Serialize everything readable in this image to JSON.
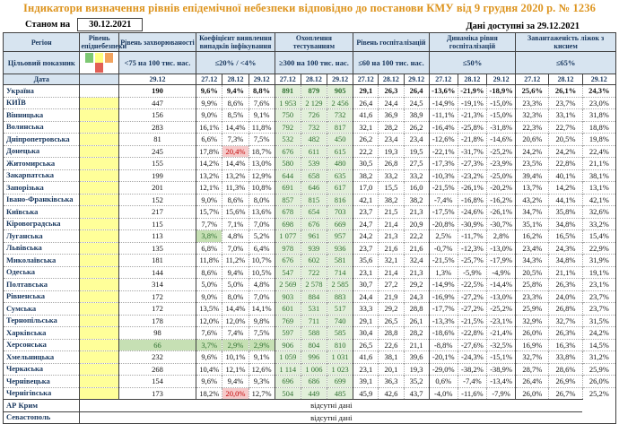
{
  "title": "Індикатори визначення рівнів епідемічної небезпеки відповідно до постанови КМУ від 9 грудня 2020 р. № 1236",
  "as_of": {
    "label": "Станом на",
    "value": "30.12.2021"
  },
  "data_available": {
    "label": "Дані доступні за",
    "value": "29.12.2021"
  },
  "columns": {
    "region": "Регіон",
    "danger": "Рівень епіднебезпеки",
    "incidence": "Рівень захворюваності",
    "detection": "Коефіцієнт виявлення випадків інфікування",
    "testing": "Охоплення тестуванням",
    "hospitalization": "Рівень госпіталізацій",
    "dynamics": "Динаміка рівня госпіталізацій",
    "beds": "Завантаженість ліжок з киснем"
  },
  "target_label": "Цільовий показник",
  "targets": {
    "incidence": "<75 на 100 тис. нас.",
    "detection": "≤20% / <4%",
    "testing": "≥300 на 100 тис. нас.",
    "hospitalization": "≤60 на 100 тис. нас.",
    "dynamics": "≤50%",
    "beds": "≤65%"
  },
  "date_label": "Дата",
  "date_single": "29.12",
  "dates": [
    "27.12",
    "28.12",
    "29.12"
  ],
  "legend_colors": [
    "#7DC873",
    "#FFFF80",
    "#F2A35E",
    "#E25F55"
  ],
  "no_data": "відсутні дані",
  "rows": [
    {
      "name": "Україна",
      "bold": true,
      "danger": "none",
      "incidence": "190",
      "detection": [
        "9,6%",
        "9,4%",
        "8,8%"
      ],
      "testing": [
        "891",
        "879",
        "905"
      ],
      "hosp": [
        "29,1",
        "26,3",
        "26,4"
      ],
      "dynamics": [
        "-13,6%",
        "-21,9%",
        "-18,9%"
      ],
      "beds": [
        "25,6%",
        "26,1%",
        "24,3%"
      ]
    },
    {
      "name": "КИЇВ",
      "danger": "yellow",
      "incidence": "447",
      "detection": [
        "9,9%",
        "8,6%",
        "7,6%"
      ],
      "testing": [
        "1 953",
        "2 129",
        "2 456"
      ],
      "hosp": [
        "26,4",
        "24,4",
        "24,5"
      ],
      "dynamics": [
        "-14,9%",
        "-19,1%",
        "-15,0%"
      ],
      "beds": [
        "23,3%",
        "23,7%",
        "23,0%"
      ]
    },
    {
      "name": "Вінницька",
      "danger": "yellow",
      "incidence": "156",
      "detection": [
        "9,0%",
        "8,5%",
        "9,1%"
      ],
      "testing": [
        "750",
        "726",
        "732"
      ],
      "hosp": [
        "41,6",
        "36,9",
        "38,9"
      ],
      "dynamics": [
        "-11,1%",
        "-21,3%",
        "-15,0%"
      ],
      "beds": [
        "32,3%",
        "33,1%",
        "31,8%"
      ]
    },
    {
      "name": "Волинська",
      "danger": "yellow",
      "incidence": "283",
      "detection": [
        "16,1%",
        "14,4%",
        "11,8%"
      ],
      "testing": [
        "792",
        "732",
        "817"
      ],
      "hosp": [
        "32,1",
        "28,2",
        "26,2"
      ],
      "dynamics": [
        "-16,4%",
        "-25,8%",
        "-31,8%"
      ],
      "beds": [
        "22,3%",
        "22,7%",
        "18,8%"
      ]
    },
    {
      "name": "Дніпропетровська",
      "danger": "yellow",
      "incidence": "81",
      "detection": [
        "6,6%",
        "7,3%",
        "7,5%"
      ],
      "testing": [
        "532",
        "482",
        "450"
      ],
      "hosp": [
        "26,2",
        "23,4",
        "23,4"
      ],
      "dynamics": [
        "-12,6%",
        "-21,8%",
        "-14,6%"
      ],
      "beds": [
        "20,6%",
        "20,5%",
        "19,8%"
      ]
    },
    {
      "name": "Донецька",
      "danger": "yellow",
      "incidence": "245",
      "detection": [
        "17,8%",
        {
          "v": "20,4%",
          "hl": "red"
        },
        "18,7%"
      ],
      "testing": [
        "676",
        "611",
        "615"
      ],
      "hosp": [
        "22,2",
        "19,3",
        "19,5"
      ],
      "dynamics": [
        "-22,1%",
        "-31,7%",
        "-25,2%"
      ],
      "beds": [
        "24,2%",
        "24,2%",
        "22,4%"
      ]
    },
    {
      "name": "Житомирська",
      "danger": "yellow",
      "incidence": "155",
      "detection": [
        "14,2%",
        "14,4%",
        "13,0%"
      ],
      "testing": [
        "580",
        "539",
        "480"
      ],
      "hosp": [
        "30,5",
        "26,8",
        "27,5"
      ],
      "dynamics": [
        "-17,3%",
        "-27,3%",
        "-23,9%"
      ],
      "beds": [
        "23,5%",
        "22,8%",
        "21,1%"
      ]
    },
    {
      "name": "Закарпатська",
      "danger": "yellow",
      "incidence": "199",
      "detection": [
        "13,2%",
        "13,2%",
        "12,9%"
      ],
      "testing": [
        "644",
        "658",
        "635"
      ],
      "hosp": [
        "38,2",
        "33,2",
        "33,2"
      ],
      "dynamics": [
        "-10,3%",
        "-23,2%",
        "-25,0%"
      ],
      "beds": [
        "39,4%",
        "40,1%",
        "38,1%"
      ]
    },
    {
      "name": "Запорізька",
      "danger": "yellow",
      "incidence": "201",
      "detection": [
        "12,1%",
        "11,3%",
        "10,8%"
      ],
      "testing": [
        "691",
        "646",
        "617"
      ],
      "hosp": [
        "17,0",
        "15,5",
        "16,0"
      ],
      "dynamics": [
        "-21,5%",
        "-26,1%",
        "-20,2%"
      ],
      "beds": [
        "13,7%",
        "14,2%",
        "13,1%"
      ]
    },
    {
      "name": "Івано-Франківська",
      "danger": "yellow",
      "incidence": "152",
      "detection": [
        "9,0%",
        "8,6%",
        "8,0%"
      ],
      "testing": [
        "857",
        "815",
        "816"
      ],
      "hosp": [
        "42,1",
        "38,2",
        "38,2"
      ],
      "dynamics": [
        "-7,4%",
        "-16,8%",
        "-16,2%"
      ],
      "beds": [
        "43,2%",
        "44,1%",
        "42,1%"
      ]
    },
    {
      "name": "Київська",
      "danger": "yellow",
      "incidence": "217",
      "detection": [
        "15,7%",
        "15,6%",
        "13,6%"
      ],
      "testing": [
        "678",
        "654",
        "703"
      ],
      "hosp": [
        "23,7",
        "21,5",
        "21,3"
      ],
      "dynamics": [
        "-17,5%",
        "-24,6%",
        "-26,1%"
      ],
      "beds": [
        "34,7%",
        "35,8%",
        "32,6%"
      ]
    },
    {
      "name": "Кіровоградська",
      "danger": "yellow",
      "incidence": "115",
      "detection": [
        "7,7%",
        "7,1%",
        "7,0%"
      ],
      "testing": [
        "698",
        "676",
        "669"
      ],
      "hosp": [
        "24,7",
        "21,4",
        "20,9"
      ],
      "dynamics": [
        "-20,8%",
        "-30,9%",
        "-30,7%"
      ],
      "beds": [
        "35,1%",
        "34,8%",
        "33,2%"
      ]
    },
    {
      "name": "Луганська",
      "danger": "yellow",
      "incidence": "113",
      "detection": [
        {
          "v": "3,8%",
          "hl": "green"
        },
        "4,8%",
        "5,2%"
      ],
      "testing": [
        "1 077",
        "961",
        "957"
      ],
      "hosp": [
        "24,2",
        "21,3",
        "22,2"
      ],
      "dynamics": [
        "2,5%",
        "-11,7%",
        "2,8%"
      ],
      "beds": [
        "16,2%",
        "16,5%",
        "15,4%"
      ]
    },
    {
      "name": "Львівська",
      "danger": "yellow",
      "incidence": "135",
      "detection": [
        "6,8%",
        "7,0%",
        "6,4%"
      ],
      "testing": [
        "978",
        "939",
        "936"
      ],
      "hosp": [
        "23,7",
        "21,6",
        "21,6"
      ],
      "dynamics": [
        "-0,7%",
        "-12,3%",
        "-13,0%"
      ],
      "beds": [
        "23,4%",
        "24,3%",
        "22,9%"
      ]
    },
    {
      "name": "Миколаївська",
      "danger": "yellow",
      "incidence": "181",
      "detection": [
        "11,8%",
        "11,2%",
        "10,7%"
      ],
      "testing": [
        "676",
        "602",
        "581"
      ],
      "hosp": [
        "35,6",
        "32,1",
        "32,4"
      ],
      "dynamics": [
        "-21,5%",
        "-25,7%",
        "-17,9%"
      ],
      "beds": [
        "34,3%",
        "34,8%",
        "31,9%"
      ]
    },
    {
      "name": "Одеська",
      "danger": "yellow",
      "incidence": "144",
      "detection": [
        "8,6%",
        "9,4%",
        "10,5%"
      ],
      "testing": [
        "547",
        "722",
        "714"
      ],
      "hosp": [
        "23,1",
        "21,4",
        "21,3"
      ],
      "dynamics": [
        "1,3%",
        "-5,9%",
        "-4,9%"
      ],
      "beds": [
        "20,5%",
        "21,1%",
        "19,1%"
      ]
    },
    {
      "name": "Полтавська",
      "danger": "yellow",
      "incidence": "314",
      "detection": [
        "5,0%",
        "5,0%",
        "4,8%"
      ],
      "testing": [
        "2 569",
        "2 578",
        "2 585"
      ],
      "hosp": [
        "30,7",
        "27,2",
        "29,2"
      ],
      "dynamics": [
        "-14,9%",
        "-22,5%",
        "-14,4%"
      ],
      "beds": [
        "25,8%",
        "26,3%",
        "23,1%"
      ]
    },
    {
      "name": "Рівненська",
      "danger": "yellow",
      "incidence": "172",
      "detection": [
        "9,0%",
        "8,0%",
        "7,0%"
      ],
      "testing": [
        "903",
        "884",
        "883"
      ],
      "hosp": [
        "24,4",
        "21,9",
        "24,3"
      ],
      "dynamics": [
        "-16,9%",
        "-27,2%",
        "-13,0%"
      ],
      "beds": [
        "23,3%",
        "24,0%",
        "23,7%"
      ]
    },
    {
      "name": "Сумська",
      "danger": "yellow",
      "incidence": "172",
      "detection": [
        "13,5%",
        "14,4%",
        "14,1%"
      ],
      "testing": [
        "601",
        "531",
        "517"
      ],
      "hosp": [
        "33,3",
        "29,2",
        "28,8"
      ],
      "dynamics": [
        "-17,7%",
        "-27,2%",
        "-25,2%"
      ],
      "beds": [
        "25,9%",
        "26,8%",
        "23,7%"
      ]
    },
    {
      "name": "Тернопільська",
      "danger": "yellow",
      "incidence": "178",
      "detection": [
        "12,0%",
        "12,0%",
        "9,8%"
      ],
      "testing": [
        "769",
        "711",
        "740"
      ],
      "hosp": [
        "29,1",
        "26,5",
        "26,1"
      ],
      "dynamics": [
        "-13,3%",
        "-21,5%",
        "-23,1%"
      ],
      "beds": [
        "32,9%",
        "32,7%",
        "31,5%"
      ]
    },
    {
      "name": "Харківська",
      "danger": "yellow",
      "incidence": "98",
      "detection": [
        "7,6%",
        "7,4%",
        "7,5%"
      ],
      "testing": [
        "597",
        "588",
        "585"
      ],
      "hosp": [
        "30,4",
        "28,8",
        "28,2"
      ],
      "dynamics": [
        "-18,6%",
        "-22,8%",
        "-21,4%"
      ],
      "beds": [
        "26,0%",
        "26,3%",
        "24,2%"
      ]
    },
    {
      "name": "Херсонська",
      "danger": "yellow",
      "incidence": {
        "v": "66",
        "hl": "green"
      },
      "detection": [
        {
          "v": "3,7%",
          "hl": "green"
        },
        {
          "v": "2,9%",
          "hl": "green"
        },
        {
          "v": "2,9%",
          "hl": "green"
        }
      ],
      "testing": [
        "906",
        "804",
        "810"
      ],
      "hosp": [
        "26,5",
        "22,6",
        "21,1"
      ],
      "dynamics": [
        "-8,8%",
        "-27,6%",
        "-32,5%"
      ],
      "beds": [
        "16,9%",
        "16,3%",
        "14,5%"
      ]
    },
    {
      "name": "Хмельницька",
      "danger": "yellow",
      "incidence": "232",
      "detection": [
        "9,6%",
        "10,1%",
        "9,1%"
      ],
      "testing": [
        "1 059",
        "996",
        "1 031"
      ],
      "hosp": [
        "41,6",
        "38,1",
        "39,6"
      ],
      "dynamics": [
        "-20,1%",
        "-24,3%",
        "-15,1%"
      ],
      "beds": [
        "32,7%",
        "33,8%",
        "31,2%"
      ]
    },
    {
      "name": "Черкаська",
      "danger": "yellow",
      "incidence": "268",
      "detection": [
        "10,4%",
        "12,1%",
        "12,6%"
      ],
      "testing": [
        "1 114",
        "1 006",
        "1 023"
      ],
      "hosp": [
        "23,1",
        "20,1",
        "19,3"
      ],
      "dynamics": [
        "-29,0%",
        "-38,2%",
        "-38,9%"
      ],
      "beds": [
        "28,7%",
        "28,6%",
        "25,9%"
      ]
    },
    {
      "name": "Чернівецька",
      "danger": "yellow",
      "incidence": "154",
      "detection": [
        "9,6%",
        "9,4%",
        "9,3%"
      ],
      "testing": [
        "696",
        "686",
        "699"
      ],
      "hosp": [
        "39,1",
        "36,3",
        "35,2"
      ],
      "dynamics": [
        "0,6%",
        "-7,4%",
        "-13,4%"
      ],
      "beds": [
        "26,4%",
        "26,9%",
        "26,0%"
      ]
    },
    {
      "name": "Чернігівська",
      "danger": "yellow",
      "incidence": "173",
      "detection": [
        "18,2%",
        {
          "v": "20,0%",
          "hl": "red"
        },
        "12,7%"
      ],
      "testing": [
        "504",
        "449",
        "485"
      ],
      "hosp": [
        "45,9",
        "42,6",
        "43,7"
      ],
      "dynamics": [
        "-4,0%",
        "-11,6%",
        "-7,9%"
      ],
      "beds": [
        "26,0%",
        "26,7%",
        "25,2%"
      ]
    },
    {
      "name": "АР Крим",
      "no_data": true
    },
    {
      "name": "Севастополь",
      "no_data": true
    }
  ]
}
